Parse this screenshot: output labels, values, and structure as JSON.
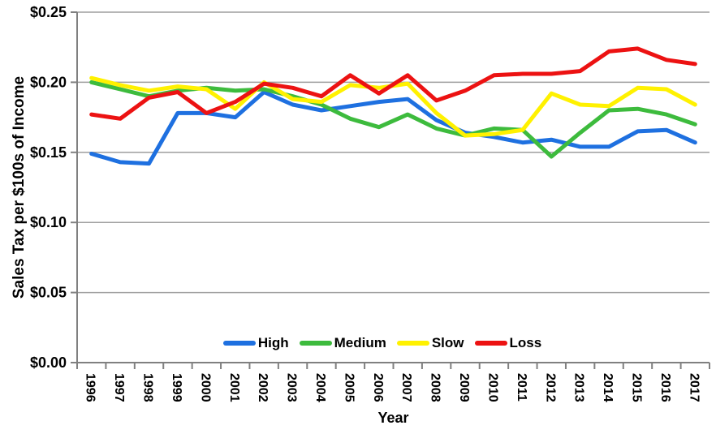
{
  "chart_data": {
    "type": "line",
    "title": "",
    "xlabel": "Year",
    "ylabel": "Sales Tax per $100s of Income",
    "x_tick_labels": [
      "1996",
      "1997",
      "1998",
      "1999",
      "2000",
      "2001",
      "2002",
      "2003",
      "2004",
      "2005",
      "2006",
      "2007",
      "2008",
      "2009",
      "2010",
      "2011",
      "2012",
      "2013",
      "2014",
      "2015",
      "2016",
      "2017"
    ],
    "ylim": [
      0,
      0.25
    ],
    "ytick_values": [
      0,
      0.05,
      0.1,
      0.15,
      0.2,
      0.25
    ],
    "ytick_labels": [
      "$0.00",
      "$0.05",
      "$0.10",
      "$0.15",
      "$0.20",
      "$0.25"
    ],
    "grid": true,
    "legend_position": "inside-bottom-center",
    "axis_color": "#808080",
    "gridline_color": "#9e9e9e",
    "line_width": 5,
    "series": [
      {
        "name": "High",
        "color": "#1E70E0",
        "values": [
          0.149,
          0.143,
          0.142,
          0.178,
          0.178,
          0.175,
          0.193,
          0.184,
          0.18,
          0.183,
          0.186,
          0.188,
          0.173,
          0.164,
          0.161,
          0.157,
          0.159,
          0.154,
          0.154,
          0.165,
          0.166,
          0.157
        ]
      },
      {
        "name": "Medium",
        "color": "#3DBB3D",
        "values": [
          0.2,
          0.195,
          0.19,
          0.194,
          0.196,
          0.194,
          0.195,
          0.19,
          0.184,
          0.174,
          0.168,
          0.177,
          0.167,
          0.162,
          0.167,
          0.166,
          0.147,
          0.164,
          0.18,
          0.181,
          0.177,
          0.17
        ]
      },
      {
        "name": "Slow",
        "color": "#FFF100",
        "values": [
          0.203,
          0.198,
          0.194,
          0.197,
          0.195,
          0.181,
          0.2,
          0.188,
          0.186,
          0.198,
          0.196,
          0.199,
          0.178,
          0.162,
          0.163,
          0.166,
          0.192,
          0.184,
          0.183,
          0.196,
          0.195,
          0.184
        ]
      },
      {
        "name": "Loss",
        "color": "#EC1212",
        "values": [
          0.177,
          0.174,
          0.189,
          0.193,
          0.178,
          0.186,
          0.199,
          0.196,
          0.19,
          0.205,
          0.192,
          0.205,
          0.187,
          0.194,
          0.205,
          0.206,
          0.206,
          0.208,
          0.222,
          0.224,
          0.216,
          0.213
        ]
      }
    ]
  }
}
